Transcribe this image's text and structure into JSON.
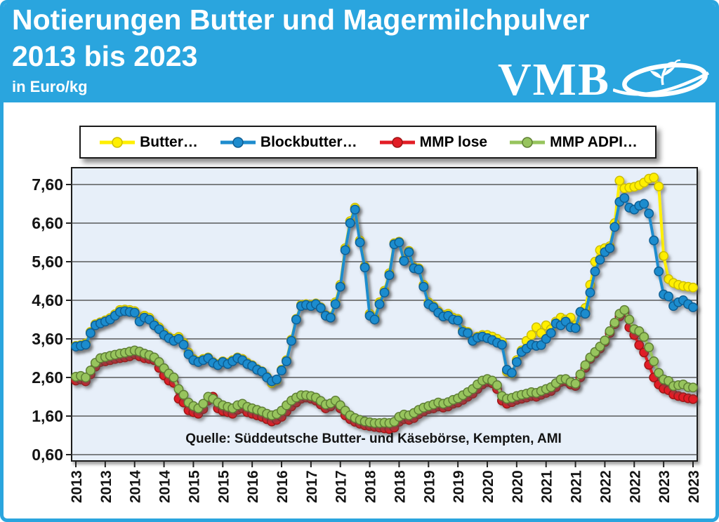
{
  "page": {
    "frame_color": "#2AA5DE"
  },
  "header": {
    "title_line1": "Notierungen Butter und Magermilchpulver",
    "title_line2": "2013 bis 2023",
    "subtitle": "in Euro/kg",
    "logo_text": "VMB",
    "bg_color": "#2AA5DE"
  },
  "chart_data": {
    "type": "line",
    "title": "Notierungen Butter und Magermilchpulver 2013 bis 2023",
    "ylabel": "Euro/kg",
    "ylim": [
      0.6,
      7.6
    ],
    "grid": true,
    "legend_position": "top",
    "x_start": "2013-01",
    "x_end": "2023-07",
    "x_step": "month",
    "plot_bg": "#E7EFF9",
    "gridline_color": "#3C3C3C",
    "source_note": "Quelle: Süddeutsche Butter- und Käsebörse, Kempten, AMI",
    "y_ticks": [
      {
        "value": 7.6,
        "label": "7,60"
      },
      {
        "value": 6.6,
        "label": "6,60"
      },
      {
        "value": 5.6,
        "label": "5,60"
      },
      {
        "value": 4.6,
        "label": "4,60"
      },
      {
        "value": 3.6,
        "label": "3,60"
      },
      {
        "value": 2.6,
        "label": "2,60"
      },
      {
        "value": 1.6,
        "label": "1,60"
      },
      {
        "value": 0.6,
        "label": "0,60"
      }
    ],
    "x_tick_labels": [
      "2013",
      "2013",
      "2014",
      "2014",
      "2015",
      "2015",
      "2016",
      "2016",
      "2017",
      "2017",
      "2018",
      "2018",
      "2019",
      "2019",
      "2020",
      "2020",
      "2021",
      "2021",
      "2022",
      "2022",
      "2023",
      "2023"
    ],
    "series": [
      {
        "name": "Butter…",
        "color": "#FFEF00",
        "edge": "#CDBE00",
        "values": [
          3.42,
          3.44,
          3.48,
          3.78,
          3.98,
          4.03,
          4.08,
          4.14,
          4.24,
          4.35,
          4.36,
          4.35,
          4.32,
          4.15,
          4.2,
          4.15,
          4.0,
          3.9,
          3.75,
          3.65,
          3.6,
          3.65,
          3.5,
          3.25,
          3.08,
          3.02,
          3.08,
          3.12,
          3.0,
          2.95,
          3.02,
          2.98,
          3.05,
          3.12,
          3.08,
          2.98,
          2.92,
          2.82,
          2.76,
          2.62,
          2.45,
          2.52,
          2.8,
          3.05,
          3.58,
          4.12,
          4.48,
          4.5,
          4.48,
          4.52,
          4.42,
          4.22,
          4.18,
          4.55,
          5.0,
          5.95,
          6.65,
          7.0,
          6.15,
          5.48,
          4.25,
          4.15,
          4.55,
          4.85,
          5.3,
          6.08,
          6.12,
          5.65,
          5.88,
          5.46,
          5.43,
          5.0,
          4.55,
          4.45,
          4.32,
          4.22,
          4.25,
          4.15,
          4.12,
          3.82,
          3.78,
          3.58,
          3.66,
          3.7,
          3.7,
          3.66,
          3.6,
          3.52,
          2.75,
          2.7,
          3.05,
          3.3,
          3.55,
          3.7,
          3.9,
          3.75,
          3.95,
          3.85,
          4.05,
          4.15,
          4.1,
          4.15,
          3.95,
          4.3,
          4.4,
          5.0,
          5.6,
          5.9,
          5.95,
          6.0,
          6.6,
          7.7,
          7.5,
          7.52,
          7.54,
          7.58,
          7.65,
          7.75,
          7.78,
          7.55,
          5.75,
          5.15,
          5.05,
          5.0,
          4.97,
          4.95,
          4.93
        ]
      },
      {
        "name": "Blockbutter…",
        "color": "#1E8CCE",
        "edge": "#0F5E93",
        "values": [
          3.4,
          3.42,
          3.45,
          3.75,
          3.95,
          4.0,
          4.05,
          4.1,
          4.2,
          4.3,
          4.32,
          4.3,
          4.28,
          4.05,
          4.15,
          4.1,
          3.95,
          3.85,
          3.7,
          3.62,
          3.55,
          3.6,
          3.45,
          3.2,
          3.05,
          3.0,
          3.05,
          3.1,
          2.98,
          2.92,
          3.0,
          2.95,
          3.02,
          3.1,
          3.05,
          2.95,
          2.9,
          2.8,
          2.75,
          2.6,
          2.5,
          2.55,
          2.78,
          3.02,
          3.55,
          4.1,
          4.45,
          4.48,
          4.45,
          4.5,
          4.4,
          4.2,
          4.15,
          4.5,
          4.95,
          5.9,
          6.6,
          6.95,
          6.1,
          5.45,
          4.2,
          4.1,
          4.5,
          4.8,
          5.25,
          6.05,
          6.1,
          5.62,
          5.85,
          5.43,
          5.4,
          4.95,
          4.5,
          4.42,
          4.28,
          4.18,
          4.2,
          4.1,
          4.08,
          3.78,
          3.75,
          3.55,
          3.63,
          3.66,
          3.62,
          3.57,
          3.5,
          3.45,
          2.8,
          2.72,
          3.0,
          3.26,
          3.35,
          3.45,
          3.42,
          3.44,
          3.6,
          3.75,
          4.0,
          3.95,
          4.05,
          3.9,
          3.88,
          4.3,
          4.25,
          4.8,
          5.35,
          5.65,
          5.85,
          5.95,
          6.5,
          7.15,
          7.25,
          7.0,
          6.95,
          7.05,
          7.1,
          6.85,
          6.15,
          5.35,
          4.75,
          4.7,
          4.45,
          4.55,
          4.6,
          4.5,
          4.42
        ]
      },
      {
        "name": "MMP lose",
        "color": "#E21D25",
        "edge": "#9C1515",
        "values": [
          2.52,
          2.55,
          2.5,
          2.68,
          2.88,
          3.0,
          3.02,
          3.05,
          3.08,
          3.1,
          3.12,
          3.15,
          3.2,
          3.15,
          3.1,
          3.08,
          3.05,
          2.85,
          2.65,
          2.52,
          2.46,
          2.05,
          1.95,
          1.75,
          1.7,
          1.66,
          1.78,
          2.0,
          2.1,
          1.8,
          1.73,
          1.7,
          1.66,
          1.76,
          1.8,
          1.7,
          1.66,
          1.62,
          1.58,
          1.52,
          1.46,
          1.5,
          1.58,
          1.72,
          1.85,
          1.95,
          2.05,
          2.08,
          2.05,
          2.0,
          1.9,
          1.8,
          1.85,
          1.95,
          1.8,
          1.62,
          1.52,
          1.45,
          1.4,
          1.36,
          1.34,
          1.32,
          1.3,
          1.28,
          1.26,
          1.3,
          1.45,
          1.52,
          1.5,
          1.55,
          1.65,
          1.72,
          1.78,
          1.8,
          1.85,
          1.82,
          1.85,
          1.92,
          1.95,
          2.02,
          2.1,
          2.18,
          2.3,
          2.42,
          2.48,
          2.45,
          2.3,
          2.0,
          1.92,
          1.96,
          2.02,
          2.05,
          2.08,
          2.12,
          2.1,
          2.15,
          2.2,
          2.25,
          2.35,
          2.48,
          2.5,
          2.42,
          2.38,
          2.6,
          2.85,
          3.08,
          3.22,
          3.35,
          3.52,
          3.75,
          3.98,
          4.18,
          4.3,
          3.9,
          3.7,
          3.44,
          3.25,
          2.93,
          2.6,
          2.42,
          2.31,
          2.27,
          2.16,
          2.12,
          2.09,
          2.06,
          2.04
        ]
      },
      {
        "name": "MMP ADPI…",
        "color": "#97C45D",
        "edge": "#5F7F34",
        "values": [
          2.62,
          2.64,
          2.6,
          2.78,
          2.98,
          3.1,
          3.13,
          3.16,
          3.19,
          3.22,
          3.24,
          3.27,
          3.3,
          3.27,
          3.22,
          3.18,
          3.12,
          3.0,
          2.84,
          2.7,
          2.6,
          2.3,
          2.15,
          1.95,
          1.86,
          1.8,
          1.92,
          2.1,
          2.05,
          1.95,
          1.88,
          1.84,
          1.8,
          1.88,
          1.92,
          1.84,
          1.8,
          1.76,
          1.72,
          1.66,
          1.62,
          1.65,
          1.74,
          1.88,
          2.0,
          2.08,
          2.14,
          2.14,
          2.12,
          2.08,
          1.99,
          1.9,
          1.93,
          2.0,
          1.88,
          1.74,
          1.62,
          1.55,
          1.5,
          1.46,
          1.44,
          1.42,
          1.42,
          1.43,
          1.42,
          1.45,
          1.58,
          1.64,
          1.62,
          1.68,
          1.76,
          1.82,
          1.86,
          1.9,
          1.95,
          1.92,
          1.96,
          2.02,
          2.06,
          2.14,
          2.22,
          2.3,
          2.42,
          2.52,
          2.56,
          2.52,
          2.4,
          2.12,
          2.05,
          2.07,
          2.12,
          2.15,
          2.18,
          2.22,
          2.2,
          2.25,
          2.3,
          2.35,
          2.45,
          2.55,
          2.56,
          2.48,
          2.44,
          2.68,
          2.92,
          3.12,
          3.26,
          3.4,
          3.56,
          3.8,
          4.02,
          4.25,
          4.35,
          4.1,
          3.85,
          3.8,
          3.65,
          3.38,
          3.02,
          2.72,
          2.55,
          2.51,
          2.38,
          2.4,
          2.42,
          2.35,
          2.34
        ]
      }
    ]
  }
}
